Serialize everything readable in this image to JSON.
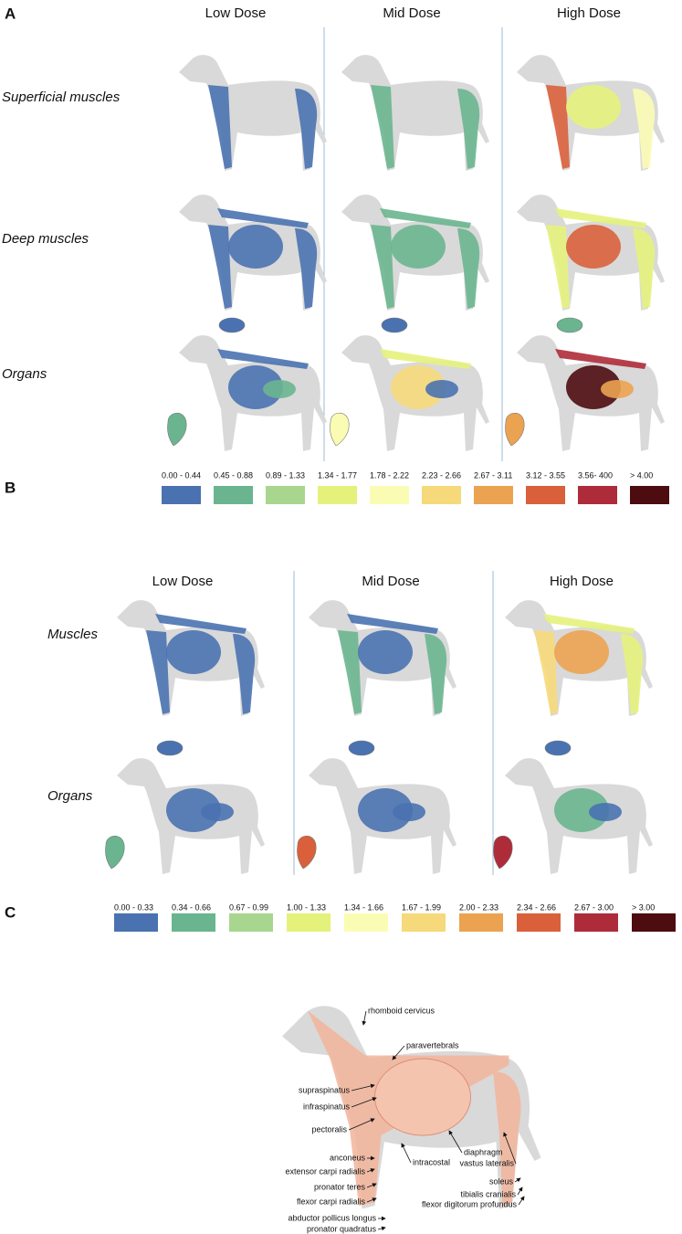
{
  "panel_a": {
    "label": "A",
    "columns": [
      "Low Dose",
      "Mid Dose",
      "High Dose"
    ],
    "rows": [
      "Superficial muscles",
      "Deep muscles",
      "Organs"
    ],
    "legend": [
      {
        "label": "0.00 - 0.44",
        "color": "#4a72b0"
      },
      {
        "label": "0.45 - 0.88",
        "color": "#6ab58f"
      },
      {
        "label": "0.89 - 1.33",
        "color": "#a8d68f"
      },
      {
        "label": "1.34 - 1.77",
        "color": "#e4f27c"
      },
      {
        "label": "1.78 - 2.22",
        "color": "#fbfcb4"
      },
      {
        "label": "2.23 - 2.66",
        "color": "#f6d97a"
      },
      {
        "label": "2.67 - 3.11",
        "color": "#eba351"
      },
      {
        "label": "3.12 - 3.55",
        "color": "#d9603b"
      },
      {
        "label": "3.56- 400",
        "color": "#ae2c3a"
      },
      {
        "label": "> 4.00",
        "color": "#4d0c10"
      }
    ]
  },
  "panel_b": {
    "label": "B",
    "columns": [
      "Low Dose",
      "Mid Dose",
      "High Dose"
    ],
    "rows": [
      "Muscles",
      "Organs"
    ],
    "legend": [
      {
        "label": "0.00 - 0.33",
        "color": "#4a72b0"
      },
      {
        "label": "0.34 - 0.66",
        "color": "#6ab58f"
      },
      {
        "label": "0.67 - 0.99",
        "color": "#a8d68f"
      },
      {
        "label": "1.00 - 1.33",
        "color": "#e4f27c"
      },
      {
        "label": "1.34 - 1.66",
        "color": "#fbfcb4"
      },
      {
        "label": "1.67 - 1.99",
        "color": "#f6d97a"
      },
      {
        "label": "2.00 - 2.33",
        "color": "#eba351"
      },
      {
        "label": "2.34 - 2.66",
        "color": "#d9603b"
      },
      {
        "label": "2.67 - 3.00",
        "color": "#ae2c3a"
      },
      {
        "label": "> 3.00",
        "color": "#4d0c10"
      }
    ]
  },
  "panel_c": {
    "label": "C",
    "annotations": [
      "rhomboid cervicus",
      "paravertebrals",
      "supraspinatus",
      "infraspinatus",
      "pectoralis",
      "diaphragm",
      "intracostal",
      "vastus lateralis",
      "soleus",
      "tibialis cranialis",
      "flexor digitorum profundus",
      "anconeus",
      "extensor carpi radialis",
      "pronator teres",
      "flexor carpi radialis",
      "abductor pollicus longus",
      "pronator quadratus"
    ]
  }
}
